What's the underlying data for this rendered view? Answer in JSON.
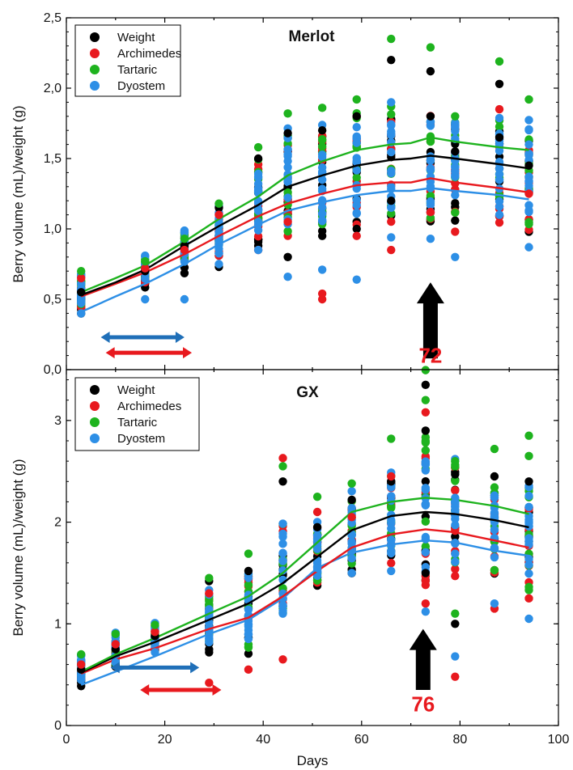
{
  "colors": {
    "Weight": "#000000",
    "Archimedes": "#e8191e",
    "Tartaric": "#1eb31e",
    "Dyostem": "#2d8fe6",
    "range_blue": "#1f6fb8",
    "range_red": "#e8191e",
    "arrow": "#000000",
    "arrow_label": "#e8191e"
  },
  "chart_data": [
    {
      "type": "scatter",
      "title": "Merlot",
      "xlabel": "Days",
      "ylabel": "Berry volume (mL)/weight (g)",
      "xlim": [
        0,
        100
      ],
      "ylim": [
        0,
        2.5
      ],
      "y_ticks": [
        "0,0",
        "0,5",
        "1,0",
        "1,5",
        "2,0",
        "2,5"
      ],
      "legend": [
        "Weight",
        "Archimedes",
        "Tartaric",
        "Dyostem"
      ],
      "legend_position": "top-left",
      "sampling_days": [
        3,
        16,
        24,
        31,
        39,
        45,
        52,
        59,
        66,
        74,
        79,
        88,
        94
      ],
      "points": {
        "Weight": [
          [
            3,
            0.55
          ],
          [
            16,
            0.7
          ],
          [
            24,
            0.88
          ],
          [
            31,
            1.15
          ],
          [
            39,
            0.88
          ],
          [
            39,
            1.5
          ],
          [
            45,
            0.8
          ],
          [
            45,
            1.68
          ],
          [
            52,
            0.95
          ],
          [
            52,
            1.7
          ],
          [
            59,
            1.0
          ],
          [
            59,
            1.8
          ],
          [
            66,
            2.2
          ],
          [
            66,
            1.2
          ],
          [
            74,
            2.12
          ],
          [
            74,
            1.8
          ],
          [
            79,
            1.55
          ],
          [
            88,
            2.03
          ],
          [
            88,
            1.65
          ],
          [
            94,
            1.45
          ]
        ],
        "Archimedes": [
          [
            3,
            0.65
          ],
          [
            16,
            0.72
          ],
          [
            24,
            0.85
          ],
          [
            31,
            1.1
          ],
          [
            39,
            0.85
          ],
          [
            45,
            1.05
          ],
          [
            52,
            0.5
          ],
          [
            52,
            0.54
          ],
          [
            59,
            0.95
          ],
          [
            66,
            0.85
          ],
          [
            74,
            1.12
          ],
          [
            79,
            0.98
          ],
          [
            88,
            1.85
          ],
          [
            94,
            1.25
          ]
        ],
        "Tartaric": [
          [
            3,
            0.7
          ],
          [
            16,
            0.77
          ],
          [
            24,
            0.93
          ],
          [
            31,
            1.18
          ],
          [
            39,
            1.58
          ],
          [
            45,
            1.82
          ],
          [
            52,
            1.86
          ],
          [
            59,
            1.92
          ],
          [
            66,
            2.35
          ],
          [
            74,
            2.29
          ],
          [
            79,
            1.8
          ],
          [
            88,
            2.19
          ],
          [
            94,
            1.92
          ]
        ],
        "Dyostem": [
          [
            3,
            0.4
          ],
          [
            16,
            0.5
          ],
          [
            24,
            0.5
          ],
          [
            31,
            0.75
          ],
          [
            39,
            0.85
          ],
          [
            45,
            0.66
          ],
          [
            52,
            0.71
          ],
          [
            59,
            0.64
          ],
          [
            66,
            0.94
          ],
          [
            74,
            0.93
          ],
          [
            79,
            0.8
          ],
          [
            88,
            1.1
          ],
          [
            94,
            0.87
          ]
        ]
      },
      "lines": {
        "Weight": [
          [
            3,
            0.53
          ],
          [
            10,
            0.62
          ],
          [
            16,
            0.71
          ],
          [
            24,
            0.88
          ],
          [
            31,
            1.02
          ],
          [
            39,
            1.17
          ],
          [
            45,
            1.3
          ],
          [
            52,
            1.38
          ],
          [
            59,
            1.45
          ],
          [
            66,
            1.49
          ],
          [
            70,
            1.5
          ],
          [
            74,
            1.52
          ],
          [
            79,
            1.5
          ],
          [
            88,
            1.46
          ],
          [
            94,
            1.43
          ]
        ],
        "Archimedes": [
          [
            3,
            0.52
          ],
          [
            10,
            0.61
          ],
          [
            16,
            0.69
          ],
          [
            24,
            0.82
          ],
          [
            31,
            0.95
          ],
          [
            39,
            1.09
          ],
          [
            45,
            1.18
          ],
          [
            52,
            1.25
          ],
          [
            59,
            1.31
          ],
          [
            66,
            1.33
          ],
          [
            70,
            1.33
          ],
          [
            74,
            1.36
          ],
          [
            79,
            1.33
          ],
          [
            88,
            1.29
          ],
          [
            94,
            1.26
          ]
        ],
        "Tartaric": [
          [
            3,
            0.55
          ],
          [
            10,
            0.65
          ],
          [
            16,
            0.74
          ],
          [
            24,
            0.91
          ],
          [
            31,
            1.07
          ],
          [
            39,
            1.23
          ],
          [
            45,
            1.38
          ],
          [
            52,
            1.48
          ],
          [
            59,
            1.56
          ],
          [
            66,
            1.6
          ],
          [
            70,
            1.61
          ],
          [
            74,
            1.65
          ],
          [
            79,
            1.62
          ],
          [
            88,
            1.58
          ],
          [
            94,
            1.56
          ]
        ],
        "Dyostem": [
          [
            3,
            0.41
          ],
          [
            10,
            0.52
          ],
          [
            16,
            0.61
          ],
          [
            24,
            0.75
          ],
          [
            31,
            0.89
          ],
          [
            39,
            1.03
          ],
          [
            45,
            1.13
          ],
          [
            52,
            1.19
          ],
          [
            59,
            1.24
          ],
          [
            66,
            1.27
          ],
          [
            70,
            1.27
          ],
          [
            74,
            1.29
          ],
          [
            79,
            1.27
          ],
          [
            88,
            1.24
          ],
          [
            94,
            1.21
          ]
        ]
      },
      "bands": {
        "center": [
          [
            3,
            0.53
          ],
          [
            16,
            0.7
          ],
          [
            24,
            0.85
          ],
          [
            31,
            0.95
          ],
          [
            39,
            1.2
          ],
          [
            45,
            1.3
          ],
          [
            52,
            1.35
          ],
          [
            59,
            1.42
          ],
          [
            66,
            1.45
          ],
          [
            74,
            1.47
          ],
          [
            79,
            1.45
          ],
          [
            88,
            1.42
          ],
          [
            94,
            1.37
          ]
        ],
        "halfwidth": [
          0.12,
          0.08,
          0.12,
          0.18,
          0.32,
          0.4,
          0.45,
          0.45,
          0.45,
          0.47,
          0.42,
          0.4,
          0.4
        ]
      },
      "ranges": [
        {
          "color": "range_blue",
          "x": [
            7,
            24
          ],
          "y": 0.23
        },
        {
          "color": "range_red",
          "x": [
            8,
            25.5
          ],
          "y": 0.12
        }
      ],
      "arrow": {
        "x": 74,
        "y_from": 0.08,
        "y_to": 0.62,
        "label": "72",
        "label_y": 0.05
      }
    },
    {
      "type": "scatter",
      "title": "GX",
      "xlabel": "Days",
      "ylabel": "Berry volume (mL)/weight (g)",
      "xlim": [
        0,
        100
      ],
      "ylim": [
        0,
        3.5
      ],
      "x_ticks": [
        "0",
        "20",
        "40",
        "60",
        "80",
        "100"
      ],
      "y_ticks": [
        "0",
        "1",
        "2",
        "3"
      ],
      "legend": [
        "Weight",
        "Archimedes",
        "Tartaric",
        "Dyostem"
      ],
      "legend_position": "top-left",
      "sampling_days": [
        3,
        10,
        18,
        29,
        37,
        44,
        51,
        58,
        66,
        73,
        79,
        87,
        94
      ],
      "points": {
        "Weight": [
          [
            3,
            0.55
          ],
          [
            10,
            0.75
          ],
          [
            18,
            0.88
          ],
          [
            29,
            1.42
          ],
          [
            37,
            1.52
          ],
          [
            44,
            2.4
          ],
          [
            51,
            1.95
          ],
          [
            58,
            2.22
          ],
          [
            66,
            2.4
          ],
          [
            73,
            3.35
          ],
          [
            73,
            2.9
          ],
          [
            73,
            1.5
          ],
          [
            79,
            2.47
          ],
          [
            79,
            1.0
          ],
          [
            87,
            2.45
          ],
          [
            94,
            2.4
          ]
        ],
        "Archimedes": [
          [
            3,
            0.6
          ],
          [
            10,
            0.8
          ],
          [
            18,
            0.92
          ],
          [
            29,
            0.42
          ],
          [
            29,
            1.3
          ],
          [
            37,
            0.55
          ],
          [
            44,
            2.63
          ],
          [
            44,
            0.65
          ],
          [
            51,
            2.1
          ],
          [
            58,
            2.05
          ],
          [
            66,
            2.45
          ],
          [
            73,
            3.08
          ],
          [
            73,
            1.2
          ],
          [
            79,
            0.48
          ],
          [
            79,
            1.47
          ],
          [
            87,
            1.15
          ],
          [
            94,
            1.25
          ]
        ],
        "Tartaric": [
          [
            3,
            0.7
          ],
          [
            10,
            0.9
          ],
          [
            18,
            0.99
          ],
          [
            29,
            1.45
          ],
          [
            37,
            1.69
          ],
          [
            44,
            2.55
          ],
          [
            51,
            2.25
          ],
          [
            58,
            2.38
          ],
          [
            66,
            2.82
          ],
          [
            73,
            3.5
          ],
          [
            73,
            3.2
          ],
          [
            79,
            2.6
          ],
          [
            79,
            1.1
          ],
          [
            87,
            2.72
          ],
          [
            94,
            2.85
          ],
          [
            94,
            2.65
          ]
        ],
        "Dyostem": [
          [
            3,
            0.45
          ],
          [
            10,
            0.62
          ],
          [
            18,
            0.72
          ],
          [
            29,
            0.82
          ],
          [
            37,
            0.9
          ],
          [
            44,
            1.1
          ],
          [
            51,
            1.55
          ],
          [
            58,
            1.5
          ],
          [
            66,
            1.52
          ],
          [
            73,
            2.57
          ],
          [
            73,
            1.12
          ],
          [
            79,
            0.68
          ],
          [
            79,
            2.2
          ],
          [
            87,
            1.2
          ],
          [
            94,
            1.05
          ]
        ]
      },
      "lines": {
        "Weight": [
          [
            3,
            0.52
          ],
          [
            10,
            0.68
          ],
          [
            18,
            0.82
          ],
          [
            29,
            1.04
          ],
          [
            37,
            1.2
          ],
          [
            44,
            1.4
          ],
          [
            51,
            1.66
          ],
          [
            58,
            1.92
          ],
          [
            66,
            2.06
          ],
          [
            73,
            2.1
          ],
          [
            79,
            2.08
          ],
          [
            87,
            2.02
          ],
          [
            94,
            1.95
          ]
        ],
        "Archimedes": [
          [
            3,
            0.51
          ],
          [
            10,
            0.65
          ],
          [
            18,
            0.76
          ],
          [
            29,
            0.95
          ],
          [
            37,
            1.06
          ],
          [
            44,
            1.27
          ],
          [
            51,
            1.52
          ],
          [
            58,
            1.75
          ],
          [
            66,
            1.88
          ],
          [
            73,
            1.93
          ],
          [
            79,
            1.9
          ],
          [
            87,
            1.82
          ],
          [
            94,
            1.75
          ]
        ],
        "Tartaric": [
          [
            3,
            0.53
          ],
          [
            10,
            0.7
          ],
          [
            18,
            0.86
          ],
          [
            29,
            1.1
          ],
          [
            37,
            1.27
          ],
          [
            44,
            1.5
          ],
          [
            51,
            1.8
          ],
          [
            58,
            2.1
          ],
          [
            66,
            2.2
          ],
          [
            73,
            2.24
          ],
          [
            79,
            2.22
          ],
          [
            87,
            2.16
          ],
          [
            94,
            2.08
          ]
        ],
        "Dyostem": [
          [
            3,
            0.4
          ],
          [
            10,
            0.53
          ],
          [
            18,
            0.68
          ],
          [
            29,
            0.9
          ],
          [
            37,
            1.04
          ],
          [
            44,
            1.25
          ],
          [
            51,
            1.55
          ],
          [
            58,
            1.7
          ],
          [
            66,
            1.78
          ],
          [
            73,
            1.82
          ],
          [
            79,
            1.8
          ],
          [
            87,
            1.72
          ],
          [
            94,
            1.67
          ]
        ]
      },
      "bands": {
        "center": [
          [
            3,
            0.55
          ],
          [
            10,
            0.72
          ],
          [
            18,
            0.85
          ],
          [
            29,
            1.02
          ],
          [
            37,
            1.15
          ],
          [
            44,
            1.55
          ],
          [
            51,
            1.72
          ],
          [
            58,
            1.9
          ],
          [
            66,
            2.05
          ],
          [
            73,
            2.1
          ],
          [
            79,
            2.05
          ],
          [
            87,
            1.95
          ],
          [
            94,
            1.85
          ]
        ],
        "halfwidth": [
          0.12,
          0.15,
          0.13,
          0.3,
          0.45,
          0.55,
          0.35,
          0.4,
          0.5,
          0.8,
          0.6,
          0.5,
          0.6
        ]
      },
      "ranges": [
        {
          "color": "range_blue",
          "x": [
            9,
            27
          ],
          "y": 0.57
        },
        {
          "color": "range_red",
          "x": [
            15,
            31.5
          ],
          "y": 0.35
        }
      ],
      "arrow": {
        "x": 72.5,
        "y_from": 0.35,
        "y_to": 0.95,
        "label": "76",
        "label_y": 0.14
      }
    }
  ]
}
